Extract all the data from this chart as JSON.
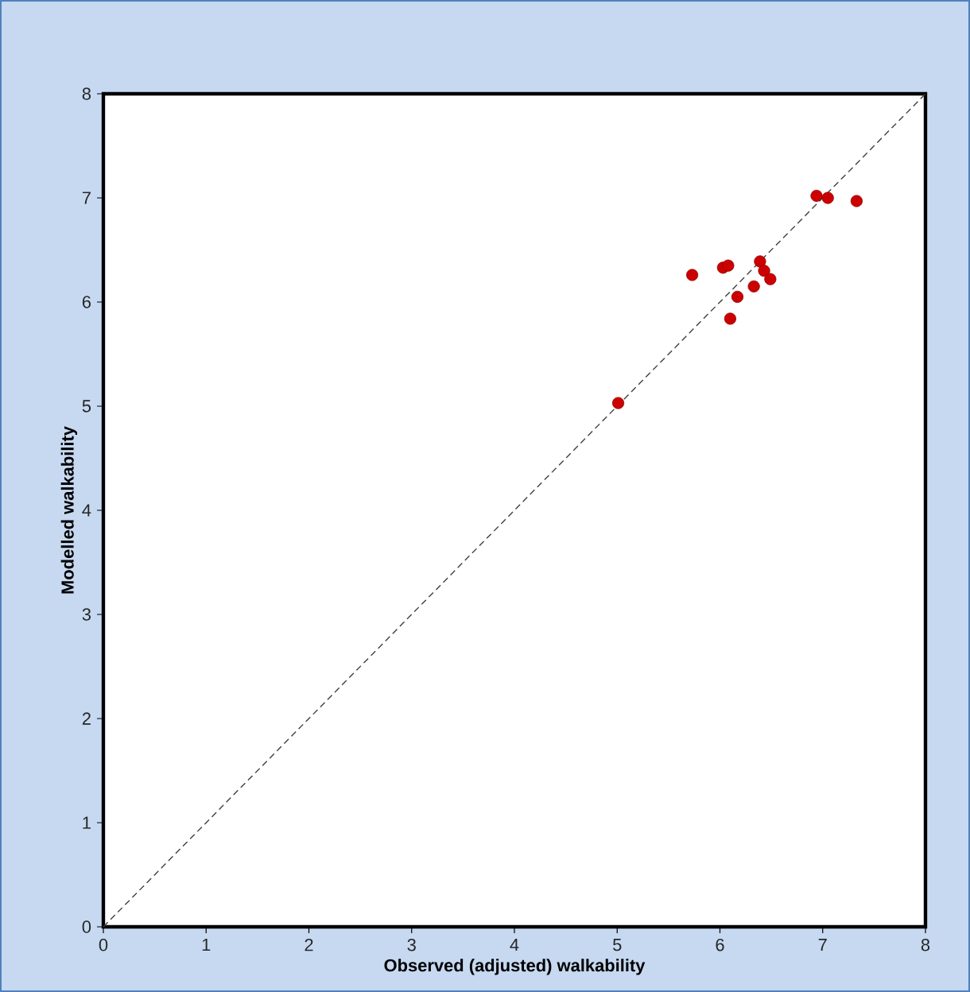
{
  "chart_data": {
    "type": "scatter",
    "xlabel": "Observed (adjusted) walkability",
    "ylabel": "Modelled walkability",
    "xlim": [
      0,
      8
    ],
    "ylim": [
      0,
      8
    ],
    "xticks": [
      0,
      1,
      2,
      3,
      4,
      5,
      6,
      7,
      8
    ],
    "yticks": [
      0,
      1,
      2,
      3,
      4,
      5,
      6,
      7,
      8
    ],
    "grid": false,
    "series": [
      {
        "type": "line",
        "color": "#404040",
        "line_style": "dashed",
        "marker": "none",
        "x": [
          0,
          8
        ],
        "values": [
          0,
          8
        ]
      },
      {
        "color": "#cc0000",
        "marker": "circle",
        "x": [
          6.94,
          7.05,
          7.33,
          5.73,
          6.03,
          6.08,
          6.39,
          6.43,
          6.49,
          6.33,
          6.17,
          6.1,
          5.01
        ],
        "values": [
          7.02,
          7.0,
          6.97,
          6.26,
          6.33,
          6.35,
          6.39,
          6.3,
          6.22,
          6.15,
          6.05,
          5.84,
          5.03
        ]
      }
    ]
  }
}
